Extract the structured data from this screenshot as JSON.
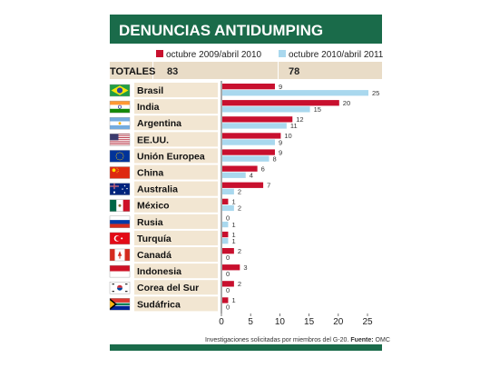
{
  "header": {
    "title": "DENUNCIAS ANTIDUMPING"
  },
  "totals": {
    "label": "TOTALES",
    "values": [
      "83",
      "78"
    ]
  },
  "footnote": {
    "text": "Investigaciones solicitadas por miembros del G-20.",
    "source_label": "Fuente:",
    "source": "OMC"
  },
  "colors": {
    "header_bg": "#1a6b4a",
    "series_1": "#c8102e",
    "series_2": "#a9d8ee",
    "row_band": "#f2e6d2",
    "total_band": "#e9dcc7"
  },
  "flags": {
    "Brasil": "brazil-flag-icon",
    "India": "india-flag-icon",
    "Argentina": "argentina-flag-icon",
    "EE.UU.": "usa-flag-icon",
    "Unión Europea": "eu-flag-icon",
    "China": "china-flag-icon",
    "Australia": "australia-flag-icon",
    "México": "mexico-flag-icon",
    "Rusia": "russia-flag-icon",
    "Turquía": "turkey-flag-icon",
    "Canadá": "canada-flag-icon",
    "Indonesia": "indonesia-flag-icon",
    "Corea del Sur": "south-korea-flag-icon",
    "Sudáfrica": "south-africa-flag-icon"
  },
  "chart_data": {
    "type": "bar",
    "orientation": "horizontal",
    "title": "DENUNCIAS ANTIDUMPING",
    "categories": [
      "Brasil",
      "India",
      "Argentina",
      "EE.UU.",
      "Unión Europea",
      "China",
      "Australia",
      "México",
      "Rusia",
      "Turquía",
      "Canadá",
      "Indonesia",
      "Corea del Sur",
      "Sudáfrica"
    ],
    "series": [
      {
        "name": "octubre 2009/abril 2010",
        "values": [
          9,
          20,
          12,
          10,
          9,
          6,
          7,
          1,
          0,
          1,
          2,
          3,
          2,
          1
        ]
      },
      {
        "name": "octubre 2010/abril 2011",
        "values": [
          25,
          15,
          11,
          9,
          8,
          4,
          2,
          2,
          1,
          1,
          0,
          0,
          0,
          0
        ]
      }
    ],
    "xlim": [
      0,
      25
    ],
    "xticks": [
      0,
      5,
      10,
      15,
      20,
      25
    ],
    "xlabel": "",
    "ylabel": "",
    "legend": "top",
    "grid": false
  }
}
